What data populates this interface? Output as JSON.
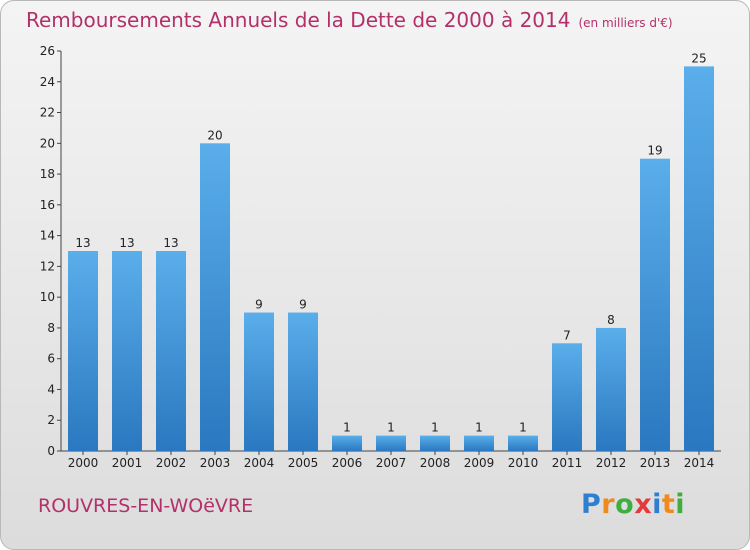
{
  "chart_data": {
    "type": "bar",
    "title": "Remboursements Annuels de la Dette de 2000 à 2014",
    "subtitle": "(en milliers d'€)",
    "categories": [
      "2000",
      "2001",
      "2002",
      "2003",
      "2004",
      "2005",
      "2006",
      "2007",
      "2008",
      "2009",
      "2010",
      "2011",
      "2012",
      "2013",
      "2014"
    ],
    "values": [
      13,
      13,
      13,
      20,
      9,
      9,
      1,
      1,
      1,
      1,
      1,
      7,
      8,
      19,
      25
    ],
    "ylim": [
      0,
      26
    ],
    "yticks": [
      0,
      2,
      4,
      6,
      8,
      10,
      12,
      14,
      16,
      18,
      20,
      22,
      24,
      26
    ],
    "grid": false,
    "bar_color": "#3a8fd0"
  },
  "commune": "ROUVRES-EN-WOëVRE",
  "logo": {
    "letters": [
      "P",
      "r",
      "o",
      "x",
      "i",
      "t",
      "i"
    ],
    "colors": [
      "#2f7fd1",
      "#f08a1c",
      "#3fae3f",
      "#e23b3b",
      "#2f7fd1",
      "#f08a1c",
      "#3fae3f"
    ]
  }
}
